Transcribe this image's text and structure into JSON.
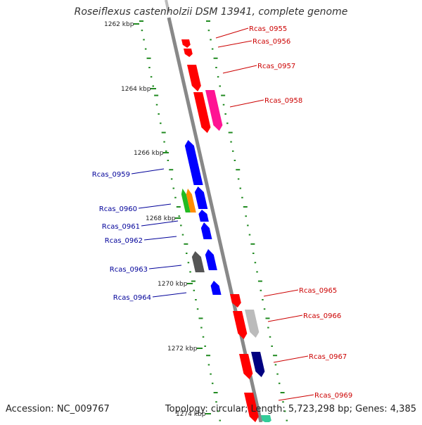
{
  "title": "Roseiflexus castenholzii DSM 13941, complete genome",
  "accession": "Accession: NC_009767",
  "summary": "Topology: circular; Length: 5,723,298 bp; Genes: 4,385",
  "colors": {
    "backbone": "#888888",
    "tick": "#228b22",
    "forward_label": "#cc0000",
    "reverse_label": "#000099"
  },
  "kbp_labels": [
    {
      "text": "1262 kbp"
    },
    {
      "text": "1264 kbp"
    },
    {
      "text": "1266 kbp"
    },
    {
      "text": "1268 kbp"
    },
    {
      "text": "1270 kbp"
    },
    {
      "text": "1272 kbp"
    },
    {
      "text": "1274 kbp"
    }
  ],
  "genes": [
    {
      "label": "Rcas_0955",
      "strand": "+",
      "color": "#ff0000"
    },
    {
      "label": "Rcas_0956",
      "strand": "+",
      "color": "#ff0000"
    },
    {
      "label": "Rcas_0957",
      "strand": "+",
      "color": "#ff0000"
    },
    {
      "label": "Rcas_0958",
      "strand": "+",
      "color": "#ff1493"
    },
    {
      "label": "Rcas_0959",
      "strand": "-",
      "color": "#0000ff"
    },
    {
      "label": "Rcas_0960",
      "strand": "-",
      "color": "#ff8c00"
    },
    {
      "label": "Rcas_0961",
      "strand": "-",
      "color": "#0000ff"
    },
    {
      "label": "Rcas_0962",
      "strand": "-",
      "color": "#0000ff"
    },
    {
      "label": "Rcas_0963",
      "strand": "-",
      "color": "#555555"
    },
    {
      "label": "Rcas_0964",
      "strand": "-",
      "color": "#0000ff"
    },
    {
      "label": "Rcas_0965",
      "strand": "+",
      "color": "#ff0000"
    },
    {
      "label": "Rcas_0966",
      "strand": "+",
      "color": "#bbbbbb"
    },
    {
      "label": "Rcas_0967",
      "strand": "+",
      "color": "#000080"
    },
    {
      "label": "Rcas_0969",
      "strand": "+",
      "color": "#ff0000"
    }
  ]
}
